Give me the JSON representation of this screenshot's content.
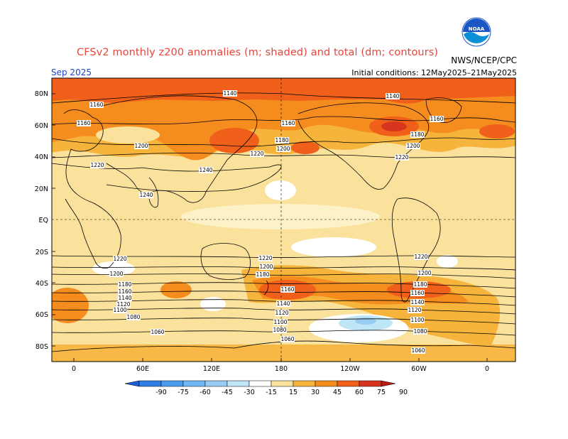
{
  "header": {
    "title": "CFSv2 monthly z200 anomalies (m; shaded) and total (dm; contours)",
    "agency": "NWS/NCEP/CPC",
    "month": "Sep 2025",
    "initial_conditions": "Initial conditions: 12May2025–21May2025",
    "logo_text": "NOAA"
  },
  "map": {
    "lat_labels": [
      "80N",
      "60N",
      "40N",
      "20N",
      "EQ",
      "20S",
      "40S",
      "60S",
      "80S"
    ],
    "lon_labels": [
      "0",
      "60E",
      "120E",
      "180",
      "120W",
      "60W",
      "0"
    ],
    "contour_labels": [
      "1140",
      "1160",
      "1180",
      "1200",
      "1220",
      "1240",
      "1120",
      "1100",
      "1080",
      "1060"
    ]
  },
  "legend": {
    "ticks": [
      "-90",
      "-75",
      "-60",
      "-45",
      "-30",
      "-15",
      "15",
      "30",
      "45",
      "60",
      "75",
      "90"
    ],
    "colors": [
      "#1c5fd8",
      "#2f7fe6",
      "#4a9cf0",
      "#6fb6f3",
      "#98cdf3",
      "#bfe6f7",
      "#ffffff",
      "#fbe29c",
      "#f6b43c",
      "#f58c1e",
      "#f0601a",
      "#d8351e",
      "#b81e14"
    ]
  }
}
